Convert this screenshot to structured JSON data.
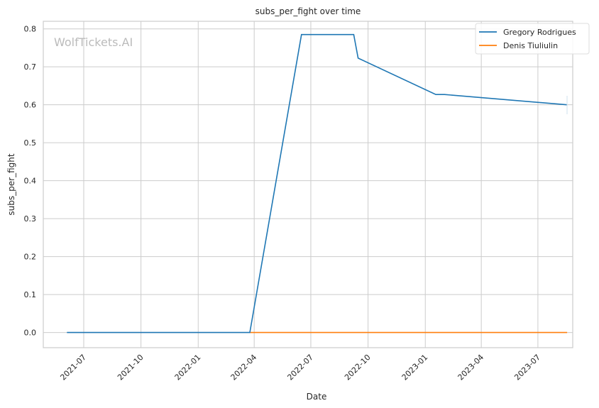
{
  "chart_data": {
    "type": "line",
    "title": "subs_per_fight over time",
    "xlabel": "Date",
    "ylabel": "subs_per_fight",
    "watermark": "WolfTickets.AI",
    "xlim": [
      "2021-04-27",
      "2023-08-26"
    ],
    "ylim": [
      -0.04,
      0.82
    ],
    "x_ticks": [
      "2021-07",
      "2021-10",
      "2022-01",
      "2022-04",
      "2022-07",
      "2022-10",
      "2023-01",
      "2023-04",
      "2023-07"
    ],
    "y_ticks": [
      "0.0",
      "0.1",
      "0.2",
      "0.3",
      "0.4",
      "0.5",
      "0.6",
      "0.7",
      "0.8"
    ],
    "grid": true,
    "legend_position": "top-right",
    "series": [
      {
        "name": "Gregory Rodrigues",
        "color": "#1f77b4",
        "x": [
          "2021-06-04",
          "2022-03-25",
          "2022-06-16",
          "2022-09-08",
          "2022-09-15",
          "2023-01-18",
          "2023-02-01",
          "2023-08-17"
        ],
        "y": [
          0.0,
          0.0,
          0.785,
          0.785,
          0.723,
          0.627,
          0.627,
          0.6
        ]
      },
      {
        "name": "Denis Tiuliulin",
        "color": "#ff7f0e",
        "x": [
          "2022-03-25",
          "2023-08-17"
        ],
        "y": [
          0.0,
          0.0
        ]
      }
    ]
  }
}
